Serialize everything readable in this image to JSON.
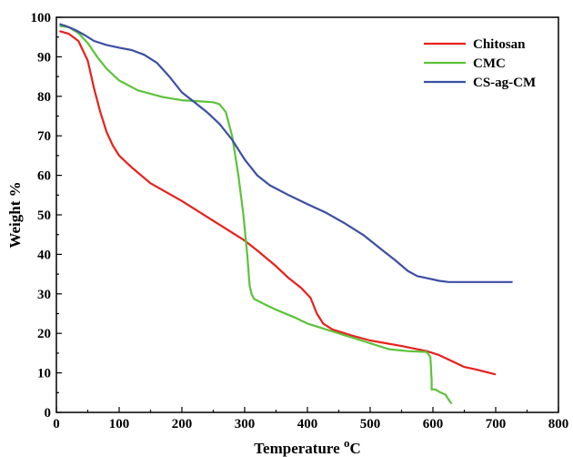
{
  "chart_data": {
    "type": "line",
    "xlabel": "Temperature",
    "xlabel_unit": "oC",
    "ylabel": "Weight %",
    "xlim": [
      0,
      800
    ],
    "ylim": [
      0,
      100
    ],
    "x_ticks": [
      "0",
      "100",
      "200",
      "300",
      "400",
      "500",
      "600",
      "700",
      "800"
    ],
    "y_ticks": [
      "0",
      "10",
      "20",
      "30",
      "40",
      "50",
      "60",
      "70",
      "80",
      "90",
      "100"
    ],
    "legend_position": "top-right",
    "grid": false,
    "series": [
      {
        "name": "Chitosan",
        "color": "#e8201c",
        "points": [
          [
            5,
            96.5
          ],
          [
            20,
            95.8
          ],
          [
            35,
            94
          ],
          [
            50,
            89
          ],
          [
            60,
            82
          ],
          [
            70,
            76
          ],
          [
            80,
            71
          ],
          [
            90,
            67.5
          ],
          [
            100,
            65
          ],
          [
            120,
            62
          ],
          [
            150,
            58
          ],
          [
            200,
            53.5
          ],
          [
            240,
            49.5
          ],
          [
            270,
            46.5
          ],
          [
            300,
            43.5
          ],
          [
            320,
            41
          ],
          [
            350,
            37
          ],
          [
            370,
            34
          ],
          [
            390,
            31.5
          ],
          [
            405,
            29
          ],
          [
            415,
            25
          ],
          [
            425,
            22.5
          ],
          [
            440,
            21
          ],
          [
            470,
            19.5
          ],
          [
            500,
            18.2
          ],
          [
            550,
            16.8
          ],
          [
            590,
            15.5
          ],
          [
            610,
            14.5
          ],
          [
            630,
            13
          ],
          [
            650,
            11.5
          ],
          [
            670,
            10.8
          ],
          [
            690,
            10
          ],
          [
            700,
            9.6
          ]
        ]
      },
      {
        "name": "CMC",
        "color": "#5cc33a",
        "points": [
          [
            5,
            97.8
          ],
          [
            20,
            97.5
          ],
          [
            35,
            96
          ],
          [
            50,
            93.5
          ],
          [
            65,
            90
          ],
          [
            80,
            87
          ],
          [
            100,
            84
          ],
          [
            130,
            81.5
          ],
          [
            170,
            79.8
          ],
          [
            200,
            79
          ],
          [
            230,
            78.7
          ],
          [
            250,
            78.5
          ],
          [
            260,
            78
          ],
          [
            270,
            76
          ],
          [
            280,
            70
          ],
          [
            290,
            60
          ],
          [
            298,
            50
          ],
          [
            304,
            40
          ],
          [
            308,
            32
          ],
          [
            311,
            30
          ],
          [
            315,
            28.7
          ],
          [
            330,
            27.5
          ],
          [
            350,
            26
          ],
          [
            380,
            24
          ],
          [
            400,
            22.5
          ],
          [
            430,
            21
          ],
          [
            460,
            19.5
          ],
          [
            500,
            17.5
          ],
          [
            530,
            16
          ],
          [
            560,
            15.5
          ],
          [
            590,
            15.3
          ],
          [
            596,
            14
          ],
          [
            598,
            8
          ],
          [
            598,
            5.8
          ],
          [
            604,
            5.8
          ],
          [
            610,
            5.2
          ],
          [
            620,
            4.5
          ],
          [
            626,
            3
          ],
          [
            630,
            2.2
          ]
        ]
      },
      {
        "name": "CS-ag-CM",
        "color": "#3b4fa3",
        "points": [
          [
            5,
            98.3
          ],
          [
            15,
            97.8
          ],
          [
            30,
            96.8
          ],
          [
            45,
            95.5
          ],
          [
            60,
            94
          ],
          [
            80,
            93
          ],
          [
            100,
            92.3
          ],
          [
            120,
            91.7
          ],
          [
            140,
            90.5
          ],
          [
            160,
            88.5
          ],
          [
            180,
            85
          ],
          [
            200,
            81
          ],
          [
            220,
            78.5
          ],
          [
            240,
            76
          ],
          [
            260,
            73
          ],
          [
            280,
            69
          ],
          [
            300,
            64
          ],
          [
            320,
            60
          ],
          [
            340,
            57.5
          ],
          [
            370,
            55
          ],
          [
            400,
            52.7
          ],
          [
            430,
            50.5
          ],
          [
            460,
            47.8
          ],
          [
            490,
            44.8
          ],
          [
            520,
            41
          ],
          [
            540,
            38.5
          ],
          [
            560,
            35.8
          ],
          [
            575,
            34.5
          ],
          [
            590,
            34
          ],
          [
            610,
            33.3
          ],
          [
            625,
            33
          ],
          [
            650,
            33
          ],
          [
            700,
            33
          ],
          [
            727,
            33
          ]
        ]
      }
    ]
  }
}
